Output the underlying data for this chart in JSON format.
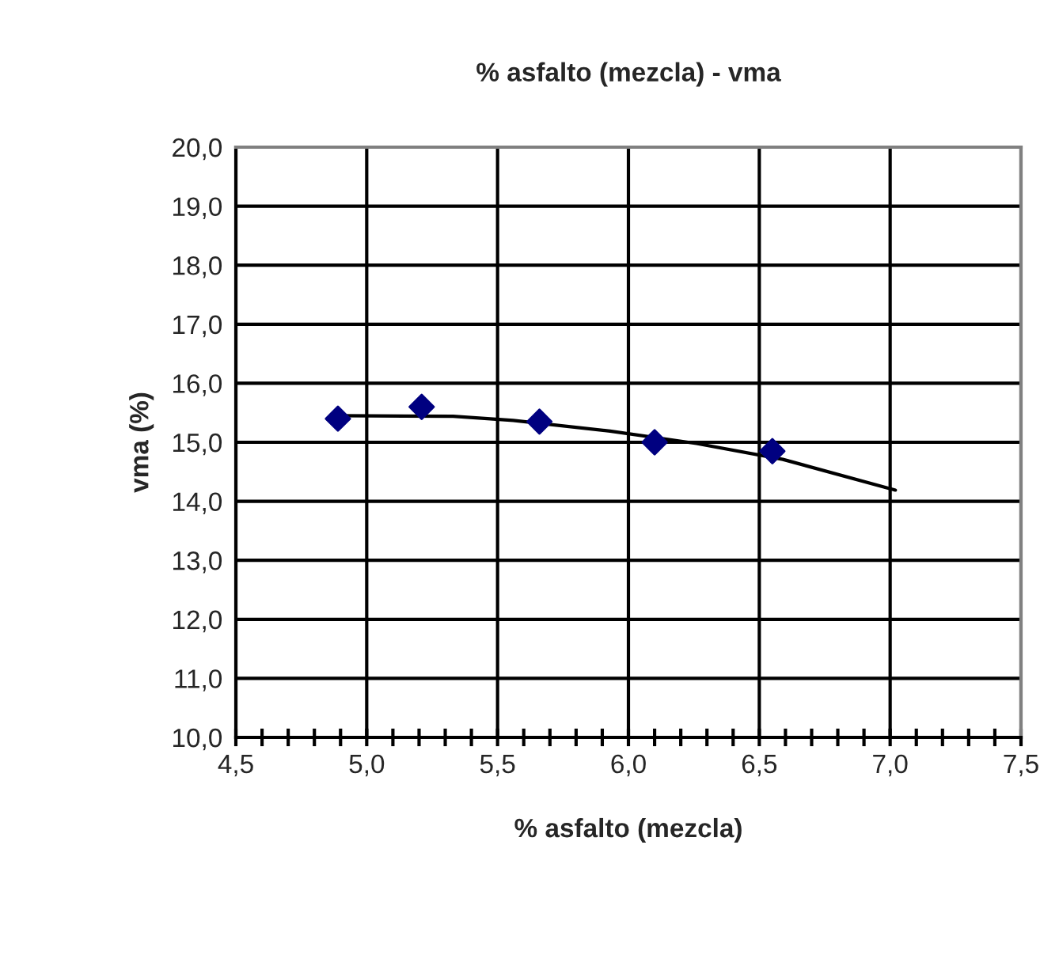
{
  "chart_data": {
    "type": "scatter",
    "title": "% asfalto (mezcla) - vma",
    "xlabel": "% asfalto (mezcla)",
    "ylabel": "vma (%)",
    "series": [
      {
        "color": "#000080",
        "marker": "diamond",
        "x": [
          4.89,
          5.21,
          5.66,
          6.1,
          6.55
        ],
        "values": [
          15.4,
          15.6,
          15.35,
          15.0,
          14.85
        ]
      },
      {
        "type": "line",
        "color": "#000000",
        "marker": "none",
        "x": [
          4.89,
          5.33,
          5.56,
          5.93,
          6.26,
          6.59,
          7.02
        ],
        "values": [
          15.45,
          15.44,
          15.37,
          15.19,
          14.98,
          14.71,
          14.19
        ]
      }
    ],
    "xlim": [
      4.5,
      7.5
    ],
    "ylim": [
      10.0,
      20.0
    ],
    "xticks": [
      {
        "value": 4.5,
        "label": "4,5"
      },
      {
        "value": 5.0,
        "label": "5,0"
      },
      {
        "value": 5.5,
        "label": "5,5"
      },
      {
        "value": 6.0,
        "label": "6,0"
      },
      {
        "value": 6.5,
        "label": "6,5"
      },
      {
        "value": 7.0,
        "label": "7,0"
      },
      {
        "value": 7.5,
        "label": "7,5"
      }
    ],
    "yticks": [
      {
        "value": 10,
        "label": "10,0"
      },
      {
        "value": 11,
        "label": "11,0"
      },
      {
        "value": 12,
        "label": "12,0"
      },
      {
        "value": 13,
        "label": "13,0"
      },
      {
        "value": 14,
        "label": "14,0"
      },
      {
        "value": 15,
        "label": "15,0"
      },
      {
        "value": 16,
        "label": "16,0"
      },
      {
        "value": 17,
        "label": "17,0"
      },
      {
        "value": 18,
        "label": "18,0"
      },
      {
        "value": 19,
        "label": "19,0"
      },
      {
        "value": 20,
        "label": "20,0"
      }
    ],
    "grid": true,
    "legend": false
  }
}
